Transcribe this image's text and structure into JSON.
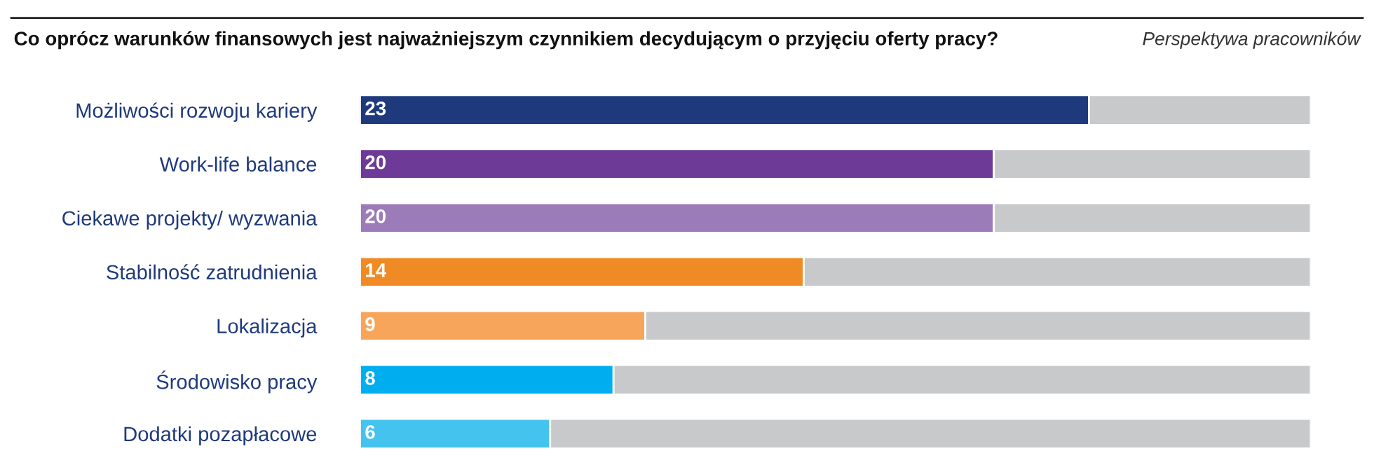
{
  "chart_data": {
    "type": "bar",
    "orientation": "horizontal",
    "stacked": true,
    "title": "Co oprócz warunków finansowych jest najważniejszym czynnikiem decydującym o przyjęciu oferty pracy?",
    "subtitle": "Perspektywa pracowników",
    "categories": [
      "Możliwości rozwoju kariery",
      "Work-life balance",
      "Ciekawe projekty/ wyzwania",
      "Stabilność zatrudnienia",
      "Lokalizacja",
      "Środowisko pracy",
      "Dodatki pozapłacowe"
    ],
    "series": [
      {
        "colors": [
          "#1f3a7c",
          "#6d3a97",
          "#9b7bb8",
          "#f08a24",
          "#f7a55a",
          "#00aeef",
          "#45c3ef"
        ],
        "values": [
          23,
          20,
          20,
          14,
          9,
          8,
          6
        ],
        "value_labels": [
          "23",
          "20",
          "20",
          "14",
          "9",
          "8",
          "6"
        ]
      },
      {
        "color": "#c8c9cb",
        "values": [
          7,
          10,
          10,
          16,
          21,
          22,
          24
        ]
      }
    ],
    "xlim": [
      0,
      30
    ],
    "tick_labels": "y",
    "grid": false
  }
}
